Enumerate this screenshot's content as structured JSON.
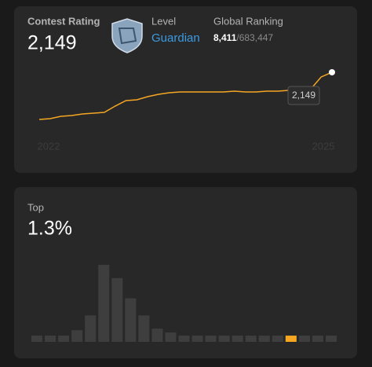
{
  "rating_card": {
    "label": "Contest Rating",
    "rating": "2,149",
    "level_label": "Level",
    "level": "Guardian",
    "ranking_label": "Global Ranking",
    "rank": "8,411",
    "rank_total": "/683,447"
  },
  "rating_chart": {
    "type": "line",
    "color": "#f5a623",
    "x_labels": [
      "2022",
      "2025"
    ],
    "values": [
      1449,
      1461,
      1496,
      1507,
      1531,
      1542,
      1554,
      1647,
      1729,
      1741,
      1787,
      1822,
      1846,
      1857,
      1857,
      1857,
      1857,
      1857,
      1869,
      1857,
      1857,
      1869,
      1869,
      1881,
      1881,
      1892,
      2079,
      2149
    ],
    "ylim": [
      1400,
      2200
    ]
  },
  "top_card": {
    "label": "Top",
    "value": "1.3%"
  },
  "histogram": {
    "type": "bar",
    "color": "#3e3e3e",
    "highlight_color": "#f5a623",
    "highlight": 19,
    "values": [
      8,
      8,
      8,
      15,
      34,
      99,
      82,
      56,
      34,
      17,
      12,
      8,
      8,
      8,
      8,
      8,
      8,
      8,
      8,
      8,
      8,
      8,
      8
    ],
    "ylim": [
      0,
      100
    ]
  }
}
